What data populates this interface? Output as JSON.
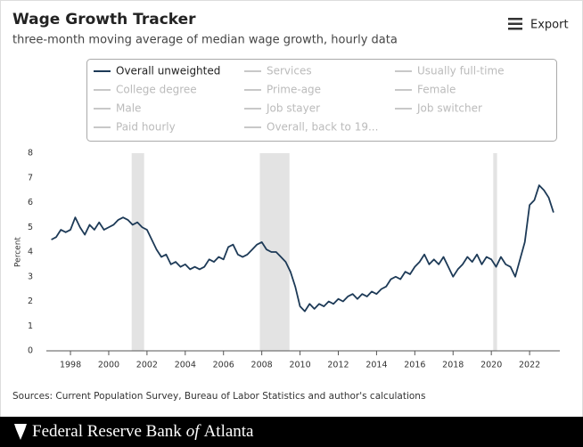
{
  "chart_data": {
    "type": "line",
    "title": "Wage Growth Tracker",
    "subtitle": "three-month moving average of median wage growth, hourly data",
    "export_label": "Export",
    "y_label": "Percent",
    "source": "Sources: Current Population Survey, Bureau of Labor Statistics and author's calculations",
    "brand": [
      "Federal Reserve Bank",
      "of",
      "Atlanta"
    ],
    "grid": false,
    "xlim": [
      1996.74,
      2023.58
    ],
    "ylim": [
      0,
      8
    ],
    "xticks": [
      1998,
      2000,
      2002,
      2004,
      2006,
      2008,
      2010,
      2012,
      2014,
      2016,
      2018,
      2020,
      2022
    ],
    "yticks": [
      0,
      1,
      2,
      3,
      4,
      5,
      6,
      7,
      8
    ],
    "recessions": [
      [
        2001.2,
        2001.85
      ],
      [
        2007.9,
        2009.45
      ],
      [
        2020.1,
        2020.3
      ]
    ],
    "recession_color": "#e3e3e3",
    "x": [
      1997,
      1997.25,
      1997.5,
      1997.75,
      1998,
      1998.25,
      1998.5,
      1998.75,
      1999,
      1999.25,
      1999.5,
      1999.75,
      2000,
      2000.25,
      2000.5,
      2000.75,
      2001,
      2001.25,
      2001.5,
      2001.75,
      2002,
      2002.25,
      2002.5,
      2002.75,
      2003,
      2003.25,
      2003.5,
      2003.75,
      2004,
      2004.25,
      2004.5,
      2004.75,
      2005,
      2005.25,
      2005.5,
      2005.75,
      2006,
      2006.25,
      2006.5,
      2006.75,
      2007,
      2007.25,
      2007.5,
      2007.75,
      2008,
      2008.25,
      2008.5,
      2008.75,
      2009,
      2009.25,
      2009.5,
      2009.75,
      2010,
      2010.25,
      2010.5,
      2010.75,
      2011,
      2011.25,
      2011.5,
      2011.75,
      2012,
      2012.25,
      2012.5,
      2012.75,
      2013,
      2013.25,
      2013.5,
      2013.75,
      2014,
      2014.25,
      2014.5,
      2014.75,
      2015,
      2015.25,
      2015.5,
      2015.75,
      2016,
      2016.25,
      2016.5,
      2016.75,
      2017,
      2017.25,
      2017.5,
      2017.75,
      2018,
      2018.25,
      2018.5,
      2018.75,
      2019,
      2019.25,
      2019.5,
      2019.75,
      2020,
      2020.25,
      2020.5,
      2020.75,
      2021,
      2021.25,
      2021.5,
      2021.75,
      2022,
      2022.25,
      2022.5,
      2022.75,
      2023,
      2023.25
    ],
    "series": [
      {
        "name": "Overall unweighted",
        "color": "#1d3a57",
        "values": [
          4.5,
          4.6,
          4.9,
          4.8,
          4.9,
          5.4,
          5.0,
          4.7,
          5.1,
          4.9,
          5.2,
          4.9,
          5.0,
          5.1,
          5.3,
          5.4,
          5.3,
          5.1,
          5.2,
          5.0,
          4.9,
          4.5,
          4.1,
          3.8,
          3.9,
          3.5,
          3.6,
          3.4,
          3.5,
          3.3,
          3.4,
          3.3,
          3.4,
          3.7,
          3.6,
          3.8,
          3.7,
          4.2,
          4.3,
          3.9,
          3.8,
          3.9,
          4.1,
          4.3,
          4.4,
          4.1,
          4.0,
          4.0,
          3.8,
          3.6,
          3.2,
          2.6,
          1.8,
          1.6,
          1.9,
          1.7,
          1.9,
          1.8,
          2.0,
          1.9,
          2.1,
          2.0,
          2.2,
          2.3,
          2.1,
          2.3,
          2.2,
          2.4,
          2.3,
          2.5,
          2.6,
          2.9,
          3.0,
          2.9,
          3.2,
          3.1,
          3.4,
          3.6,
          3.9,
          3.5,
          3.7,
          3.5,
          3.8,
          3.4,
          3.0,
          3.3,
          3.5,
          3.8,
          3.6,
          3.9,
          3.5,
          3.8,
          3.7,
          3.4,
          3.8,
          3.5,
          3.4,
          3.0,
          3.7,
          4.4,
          5.9,
          6.1,
          6.7,
          6.5,
          6.2,
          5.6
        ]
      }
    ],
    "inactive_legend": [
      "Services",
      "Usually full-time",
      "College degree",
      "Prime-age",
      "Female",
      "Male",
      "Job stayer",
      "Job switcher",
      "Paid hourly",
      "Overall, back to 19..."
    ],
    "inactive_color": "#c8c8c8"
  }
}
